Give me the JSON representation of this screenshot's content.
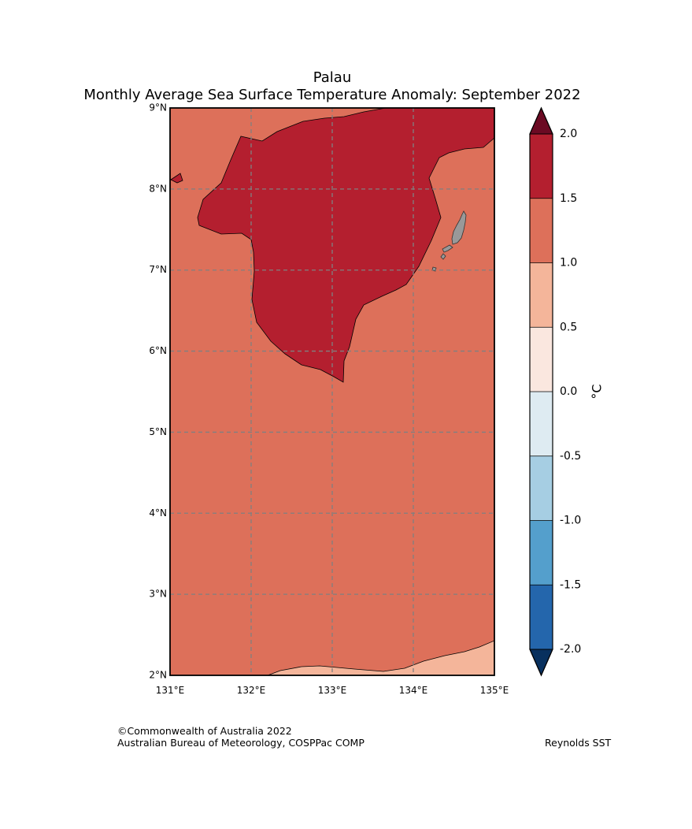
{
  "title": {
    "line1": "Palau",
    "line2": "Monthly Average Sea Surface Temperature Anomaly: September 2022"
  },
  "map": {
    "lat_ticks": [
      "9°N",
      "8°N",
      "7°N",
      "6°N",
      "5°N",
      "4°N",
      "3°N",
      "2°N"
    ],
    "lon_ticks": [
      "131°E",
      "132°E",
      "133°E",
      "134°E",
      "135°E"
    ],
    "lat_range": [
      2,
      9
    ],
    "lon_range": [
      131,
      135
    ],
    "fill_colors": {
      "range_1_0_to_1_5": "#dd705a",
      "range_1_5_to_2_0": "#b41f2f",
      "range_0_5_to_1_0": "#f4b59a",
      "land": "#999999",
      "gridline": "#808080"
    }
  },
  "colorbar": {
    "unit": "°C",
    "tick_labels": [
      "2.0",
      "1.5",
      "1.0",
      "0.5",
      "0.0",
      "-0.5",
      "-1.0",
      "-1.5",
      "-2.0"
    ],
    "segment_colors": [
      "#b41f2f",
      "#dd705a",
      "#f4b59a",
      "#fae7df",
      "#deebf2",
      "#a6cee3",
      "#549fcc",
      "#2466ac"
    ],
    "over_color": "#6b0a23",
    "under_color": "#08305e"
  },
  "footer": {
    "copyright": "©Commonwealth of Australia 2022",
    "agency": "Australian Bureau of Meteorology, COSPPac COMP",
    "dataset": "Reynolds SST"
  }
}
